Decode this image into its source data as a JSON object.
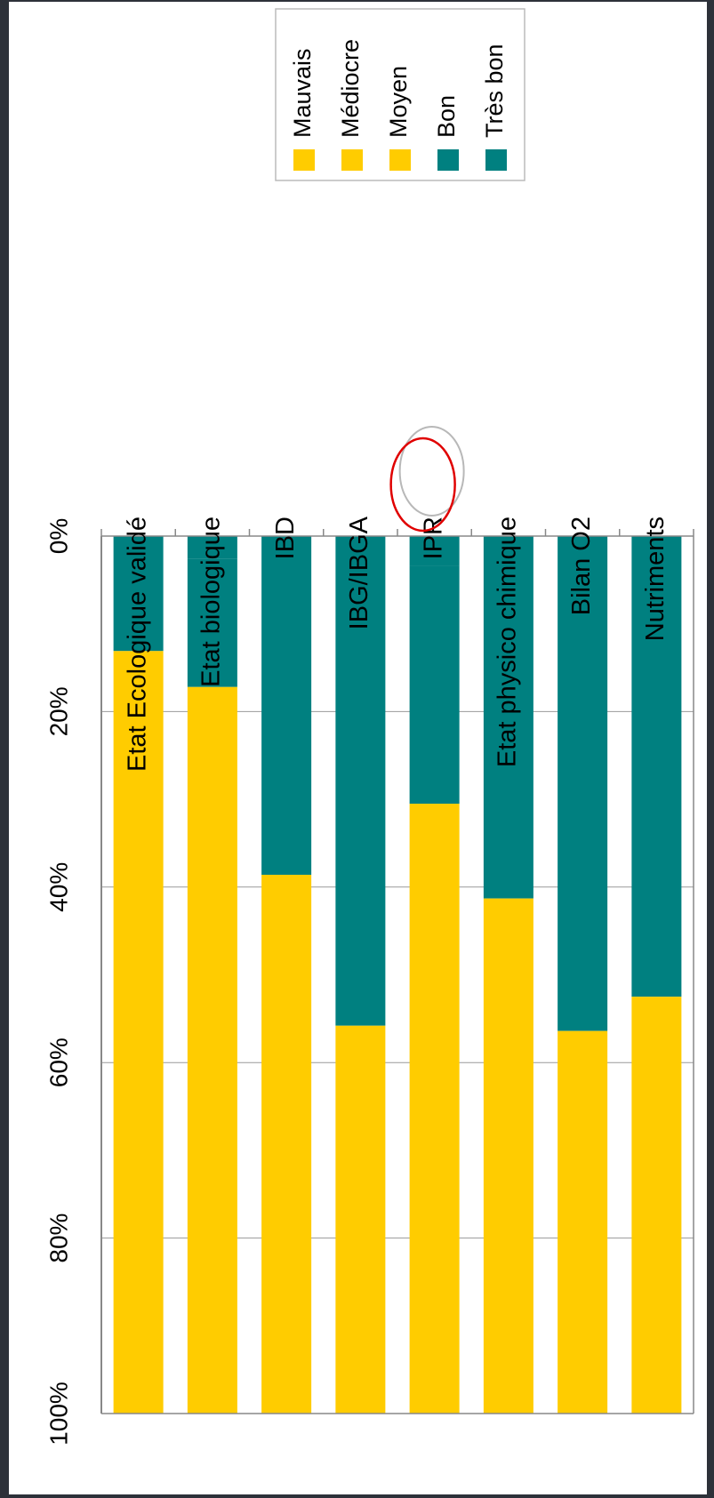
{
  "colors": {
    "bad_group": "#ffcc00",
    "good_group": "#008080",
    "axis": "#888888",
    "grid": "#999999",
    "highlight_circle": "#e00000",
    "highlight_ghost": "#b8b8b8"
  },
  "chart_data": {
    "type": "bar",
    "stacked": true,
    "orientation": "horizontal",
    "categories": [
      "Etat Ecologique validé",
      "Etat biologique",
      "IBD",
      "IBG/IBGA",
      "IPR",
      "Etat physico chimique",
      "Bilan O2",
      "Nutriments"
    ],
    "series": [
      {
        "name": "Très bon",
        "color": "#008080",
        "values": [
          0,
          2.6,
          0,
          0,
          3.4,
          0,
          0,
          0
        ]
      },
      {
        "name": "Bon",
        "color": "#008080",
        "values": [
          13.1,
          14.6,
          38.6,
          55.8,
          27.1,
          41.3,
          56.4,
          52.5
        ]
      },
      {
        "name": "Moyen",
        "color": "#ffcc00",
        "values": [
          86.9,
          82.8,
          61.2,
          44.2,
          69.5,
          58.7,
          43.6,
          47.5
        ]
      },
      {
        "name": "Médiocre",
        "color": "#ffcc00",
        "values": [
          0,
          0,
          0,
          0,
          0,
          0,
          0,
          0
        ]
      },
      {
        "name": "Mauvais",
        "color": "#ffcc00",
        "values": [
          0,
          0,
          0.2,
          0,
          0,
          0,
          0,
          0
        ]
      }
    ],
    "xlim": [
      0,
      100
    ],
    "ticks": [
      "0%",
      "20%",
      "40%",
      "60%",
      "80%",
      "100%"
    ],
    "legend_order": [
      "Mauvais",
      "Médiocre",
      "Moyen",
      "Bon",
      "Très bon"
    ],
    "legend_position": "top-right",
    "highlighted_category": "IPR",
    "grid": true
  }
}
